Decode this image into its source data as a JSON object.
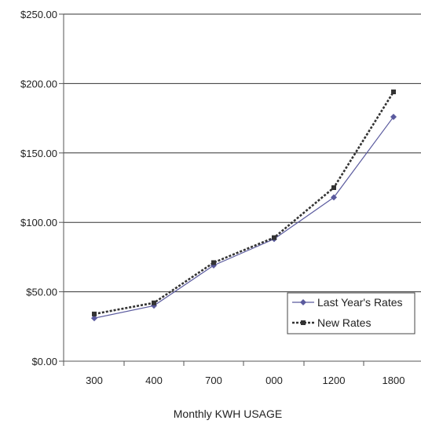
{
  "chart_data": {
    "type": "line",
    "categories": [
      "300",
      "400",
      "700",
      "000",
      "1200",
      "1800"
    ],
    "xlabel": "Monthly KWH USAGE",
    "ylabel": "",
    "ylim": [
      0,
      250
    ],
    "yticks": [
      "$0.00",
      "$50.00",
      "$100.00",
      "$150.00",
      "$200.00",
      "$250.00"
    ],
    "grid": "horizontal",
    "legend_position": "lower-right",
    "series": [
      {
        "name": "Last Year's Rates",
        "values": [
          31,
          40,
          69,
          88,
          118,
          176
        ],
        "color": "#5a5a9e",
        "line_style": "solid",
        "marker": "diamond"
      },
      {
        "name": "New Rates",
        "values": [
          34,
          42,
          71,
          89,
          125,
          194
        ],
        "color": "#333333",
        "line_style": "dotted",
        "marker": "square"
      }
    ]
  }
}
